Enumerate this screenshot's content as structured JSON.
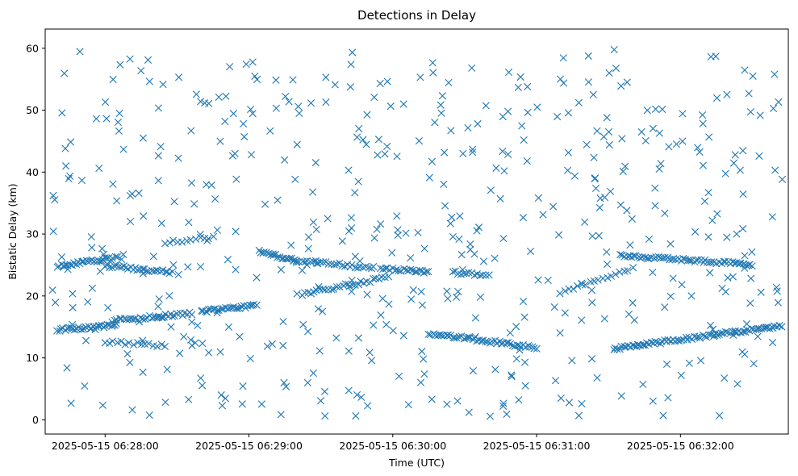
{
  "chart_data": {
    "type": "scatter",
    "title": "Detections in Delay",
    "xlabel": "Time (UTC)",
    "ylabel": "Bistatic Delay (km)",
    "marker": "x",
    "color": "#1f77b4",
    "grid": false,
    "legend": "none",
    "xlim": [
      "2025-05-15 06:27:35",
      "2025-05-15 06:32:45"
    ],
    "ylim": [
      -2.3,
      63.1
    ],
    "x_ticks": [
      "2025-05-15 06:28:00",
      "2025-05-15 06:29:00",
      "2025-05-15 06:30:00",
      "2025-05-15 06:31:00",
      "2025-05-15 06:32:00"
    ],
    "y_ticks": [
      0,
      10,
      20,
      30,
      40,
      50,
      60
    ],
    "tracks": [
      {
        "x": [
          "2025-05-15 06:27:40",
          "2025-05-15 06:28:05"
        ],
        "y": [
          14.5,
          15.3
        ],
        "points": 32
      },
      {
        "x": [
          "2025-05-15 06:28:03",
          "2025-05-15 06:28:36"
        ],
        "y": [
          16.0,
          17.2
        ],
        "points": 35
      },
      {
        "x": [
          "2025-05-15 06:28:40",
          "2025-05-15 06:29:03"
        ],
        "y": [
          17.5,
          18.5
        ],
        "points": 28
      },
      {
        "x": [
          "2025-05-15 06:27:40",
          "2025-05-15 06:28:05"
        ],
        "y": [
          24.8,
          26.2
        ],
        "points": 30
      },
      {
        "x": [
          "2025-05-15 06:28:00",
          "2025-05-15 06:28:28"
        ],
        "y": [
          24.9,
          23.8
        ],
        "points": 30
      },
      {
        "x": [
          "2025-05-15 06:29:05",
          "2025-05-15 06:29:20"
        ],
        "y": [
          27.2,
          25.6
        ],
        "points": 20
      },
      {
        "x": [
          "2025-05-15 06:29:20",
          "2025-05-15 06:29:52"
        ],
        "y": [
          25.8,
          24.5
        ],
        "points": 30
      },
      {
        "x": [
          "2025-05-15 06:29:22",
          "2025-05-15 06:29:58"
        ],
        "y": [
          20.3,
          23.0
        ],
        "points": 30
      },
      {
        "x": [
          "2025-05-15 06:29:55",
          "2025-05-15 06:30:15"
        ],
        "y": [
          24.5,
          23.8
        ],
        "points": 22
      },
      {
        "x": [
          "2025-05-15 06:30:15",
          "2025-05-15 06:31:00"
        ],
        "y": [
          14.0,
          11.6
        ],
        "points": 50
      },
      {
        "x": [
          "2025-05-15 06:30:25",
          "2025-05-15 06:30:40"
        ],
        "y": [
          23.8,
          23.4
        ],
        "points": 14
      },
      {
        "x": [
          "2025-05-15 06:31:32",
          "2025-05-15 06:32:42"
        ],
        "y": [
          11.5,
          15.2
        ],
        "points": 80
      },
      {
        "x": [
          "2025-05-15 06:31:35",
          "2025-05-15 06:32:30"
        ],
        "y": [
          26.6,
          25.0
        ],
        "points": 60
      },
      {
        "x": [
          "2025-05-15 06:31:10",
          "2025-05-15 06:31:40"
        ],
        "y": [
          20.5,
          24.5
        ],
        "points": 18
      },
      {
        "x": [
          "2025-05-15 06:28:00",
          "2025-05-15 06:28:25"
        ],
        "y": [
          12.6,
          12.0
        ],
        "points": 16
      },
      {
        "x": [
          "2025-05-15 06:28:25",
          "2025-05-15 06:28:45"
        ],
        "y": [
          28.6,
          29.5
        ],
        "points": 12
      }
    ],
    "noise": {
      "x_range": [
        "2025-05-15 06:27:38",
        "2025-05-15 06:32:44"
      ],
      "y_range": [
        0.5,
        60
      ],
      "points": 520
    }
  }
}
